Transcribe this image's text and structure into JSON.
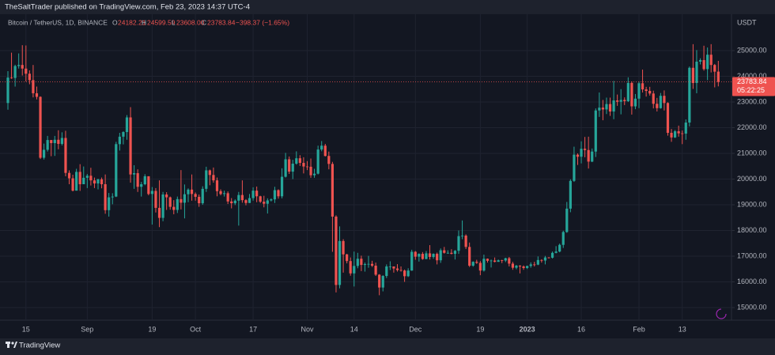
{
  "header": {
    "publisher": "TheSaltTrader published on TradingView.com, Feb 23, 2023 14:37 UTC-4"
  },
  "footer": {
    "brand": "TradingView"
  },
  "chart_data": {
    "type": "candlestick",
    "legend": {
      "symbol": "Bitcoin / TetherUS, 1D, BINANCE",
      "o_label": "O",
      "o": "24182.21",
      "h_label": "H",
      "h": "24599.59",
      "l_label": "L",
      "l": "23608.00",
      "c_label": "C",
      "c": "23783.84",
      "change": "−398.37 (−1.65%)"
    },
    "y_axis_title": "USDT",
    "countdown": "05:22:25",
    "up_color": "#26a69a",
    "down_color": "#ef5350",
    "grid": true,
    "ylim": [
      14508,
      26415
    ],
    "yticks": [
      {
        "value": 15000,
        "label": "15000.00"
      },
      {
        "value": 16000,
        "label": "16000.00"
      },
      {
        "value": 17000,
        "label": "17000.00"
      },
      {
        "value": 18000,
        "label": "18000.00"
      },
      {
        "value": 19000,
        "label": "19000.00"
      },
      {
        "value": 20000,
        "label": "20000.00"
      },
      {
        "value": 21000,
        "label": "21000.00"
      },
      {
        "value": 22000,
        "label": "22000.00"
      },
      {
        "value": 23000,
        "label": "23000.00"
      },
      {
        "value": 24000,
        "label": "24000.00"
      },
      {
        "value": 25000,
        "label": "25000.00"
      }
    ],
    "xticks": [
      {
        "value": "2022-08-15",
        "label": "15"
      },
      {
        "value": "2022-09-01",
        "label": "Sep"
      },
      {
        "value": "2022-09-19",
        "label": "19"
      },
      {
        "value": "2022-10-01",
        "label": "Oct"
      },
      {
        "value": "2022-10-17",
        "label": "17"
      },
      {
        "value": "2022-11-01",
        "label": "Nov"
      },
      {
        "value": "2022-11-14",
        "label": "14"
      },
      {
        "value": "2022-12-01",
        "label": "Dec"
      },
      {
        "value": "2022-12-19",
        "label": "19"
      },
      {
        "value": "2023-01-01",
        "label": "2023"
      },
      {
        "value": "2023-01-16",
        "label": "16"
      },
      {
        "value": "2023-02-01",
        "label": "Feb"
      },
      {
        "value": "2023-02-13",
        "label": "13"
      }
    ],
    "x": [
      "2022-08-10",
      "2022-08-11",
      "2022-08-12",
      "2022-08-13",
      "2022-08-14",
      "2022-08-15",
      "2022-08-16",
      "2022-08-17",
      "2022-08-18",
      "2022-08-19",
      "2022-08-20",
      "2022-08-21",
      "2022-08-22",
      "2022-08-23",
      "2022-08-24",
      "2022-08-25",
      "2022-08-26",
      "2022-08-27",
      "2022-08-28",
      "2022-08-29",
      "2022-08-30",
      "2022-08-31",
      "2022-09-01",
      "2022-09-02",
      "2022-09-03",
      "2022-09-04",
      "2022-09-05",
      "2022-09-06",
      "2022-09-07",
      "2022-09-08",
      "2022-09-09",
      "2022-09-10",
      "2022-09-11",
      "2022-09-12",
      "2022-09-13",
      "2022-09-14",
      "2022-09-15",
      "2022-09-16",
      "2022-09-17",
      "2022-09-18",
      "2022-09-19",
      "2022-09-20",
      "2022-09-21",
      "2022-09-22",
      "2022-09-23",
      "2022-09-24",
      "2022-09-25",
      "2022-09-26",
      "2022-09-27",
      "2022-09-28",
      "2022-09-29",
      "2022-09-30",
      "2022-10-01",
      "2022-10-02",
      "2022-10-03",
      "2022-10-04",
      "2022-10-05",
      "2022-10-06",
      "2022-10-07",
      "2022-10-08",
      "2022-10-09",
      "2022-10-10",
      "2022-10-11",
      "2022-10-12",
      "2022-10-13",
      "2022-10-14",
      "2022-10-15",
      "2022-10-16",
      "2022-10-17",
      "2022-10-18",
      "2022-10-19",
      "2022-10-20",
      "2022-10-21",
      "2022-10-22",
      "2022-10-23",
      "2022-10-24",
      "2022-10-25",
      "2022-10-26",
      "2022-10-27",
      "2022-10-28",
      "2022-10-29",
      "2022-10-30",
      "2022-10-31",
      "2022-11-01",
      "2022-11-02",
      "2022-11-03",
      "2022-11-04",
      "2022-11-05",
      "2022-11-06",
      "2022-11-07",
      "2022-11-08",
      "2022-11-09",
      "2022-11-10",
      "2022-11-11",
      "2022-11-12",
      "2022-11-13",
      "2022-11-14",
      "2022-11-15",
      "2022-11-16",
      "2022-11-17",
      "2022-11-18",
      "2022-11-19",
      "2022-11-20",
      "2022-11-21",
      "2022-11-22",
      "2022-11-23",
      "2022-11-24",
      "2022-11-25",
      "2022-11-26",
      "2022-11-27",
      "2022-11-28",
      "2022-11-29",
      "2022-11-30",
      "2022-12-01",
      "2022-12-02",
      "2022-12-03",
      "2022-12-04",
      "2022-12-05",
      "2022-12-06",
      "2022-12-07",
      "2022-12-08",
      "2022-12-09",
      "2022-12-10",
      "2022-12-11",
      "2022-12-12",
      "2022-12-13",
      "2022-12-14",
      "2022-12-15",
      "2022-12-16",
      "2022-12-17",
      "2022-12-18",
      "2022-12-19",
      "2022-12-20",
      "2022-12-21",
      "2022-12-22",
      "2022-12-23",
      "2022-12-24",
      "2022-12-25",
      "2022-12-26",
      "2022-12-27",
      "2022-12-28",
      "2022-12-29",
      "2022-12-30",
      "2022-12-31",
      "2023-01-01",
      "2023-01-02",
      "2023-01-03",
      "2023-01-04",
      "2023-01-05",
      "2023-01-06",
      "2023-01-07",
      "2023-01-08",
      "2023-01-09",
      "2023-01-10",
      "2023-01-11",
      "2023-01-12",
      "2023-01-13",
      "2023-01-14",
      "2023-01-15",
      "2023-01-16",
      "2023-01-17",
      "2023-01-18",
      "2023-01-19",
      "2023-01-20",
      "2023-01-21",
      "2023-01-22",
      "2023-01-23",
      "2023-01-24",
      "2023-01-25",
      "2023-01-26",
      "2023-01-27",
      "2023-01-28",
      "2023-01-29",
      "2023-01-30",
      "2023-01-31",
      "2023-02-01",
      "2023-02-02",
      "2023-02-03",
      "2023-02-04",
      "2023-02-05",
      "2023-02-06",
      "2023-02-07",
      "2023-02-08",
      "2023-02-09",
      "2023-02-10",
      "2023-02-11",
      "2023-02-12",
      "2023-02-13",
      "2023-02-14",
      "2023-02-15",
      "2023-02-16",
      "2023-02-17",
      "2023-02-18",
      "2023-02-19",
      "2023-02-20",
      "2023-02-21",
      "2023-02-22",
      "2023-02-23"
    ],
    "open": [
      22960,
      23950,
      23935,
      24400,
      24440,
      24300,
      24100,
      23850,
      23340,
      23200,
      20830,
      21140,
      21520,
      21400,
      21530,
      21370,
      21600,
      20240,
      20030,
      19550,
      20280,
      19800,
      20050,
      20130,
      19950,
      19830,
      19990,
      19800,
      18790,
      19290,
      19320,
      21360,
      21650,
      21830,
      22400,
      20180,
      20230,
      19700,
      19800,
      20110,
      19420,
      19540,
      18880,
      18490,
      19400,
      19290,
      18920,
      18800,
      19220,
      19080,
      19410,
      19590,
      19420,
      19310,
      19060,
      19620,
      20340,
      20160,
      19950,
      19530,
      19420,
      19450,
      19130,
      19060,
      19160,
      19380,
      19180,
      19070,
      19260,
      19550,
      19330,
      19120,
      19040,
      19170,
      19210,
      19570,
      19330,
      20090,
      20770,
      20290,
      20600,
      20810,
      20630,
      20490,
      20480,
      20150,
      20210,
      21150,
      21300,
      20900,
      20590,
      18540,
      15880,
      17590,
      17070,
      16810,
      16330,
      16620,
      16900,
      16660,
      16690,
      16700,
      16630,
      16280,
      15780,
      16230,
      16600,
      16600,
      16520,
      16460,
      16440,
      16220,
      16440,
      17170,
      16980,
      17090,
      16890,
      17110,
      16970,
      17090,
      16840,
      17230,
      17130,
      17130,
      17090,
      17210,
      17780,
      17800,
      17360,
      16630,
      16780,
      16740,
      16440,
      16900,
      16820,
      16830,
      16780,
      16840,
      16830,
      16920,
      16710,
      16550,
      16630,
      16600,
      16540,
      16620,
      16680,
      16670,
      16850,
      16830,
      16950,
      16940,
      17130,
      17180,
      17440,
      17940,
      18850,
      19930,
      20950,
      20870,
      21180,
      21130,
      20680,
      21070,
      22670,
      22780,
      22710,
      22920,
      22630,
      23060,
      23010,
      23080,
      23030,
      23740,
      22830,
      23130,
      23730,
      23490,
      23430,
      23330,
      22930,
      22760,
      23240,
      22960,
      21800,
      21620,
      21860,
      21780,
      21770,
      22200,
      24330,
      23740,
      24570,
      24630,
      24280,
      24840,
      24440,
      24182.21
    ],
    "high": [
      24200,
      24920,
      24450,
      24890,
      25210,
      25200,
      24230,
      24440,
      23600,
      23220,
      21380,
      21680,
      21520,
      21680,
      21900,
      21820,
      21880,
      20340,
      20170,
      20400,
      20580,
      20490,
      20200,
      20440,
      20060,
      20010,
      20060,
      20180,
      19460,
      19450,
      21450,
      21800,
      21860,
      22490,
      22800,
      20540,
      20380,
      19890,
      20190,
      20110,
      19690,
      19650,
      19950,
      19500,
      19490,
      19320,
      19180,
      19320,
      20350,
      19790,
      19640,
      20180,
      19480,
      19400,
      19720,
      20480,
      20370,
      20450,
      20060,
      19600,
      19550,
      19520,
      19260,
      19210,
      19500,
      19950,
      19220,
      19420,
      19680,
      19710,
      19350,
      19350,
      19250,
      19250,
      19700,
      19600,
      20420,
      21020,
      20880,
      20750,
      21080,
      20930,
      20850,
      20700,
      20800,
      20400,
      21300,
      21480,
      21370,
      21070,
      20670,
      18590,
      18160,
      17660,
      17090,
      16950,
      17180,
      17130,
      17020,
      16750,
      17010,
      16820,
      16750,
      16300,
      16260,
      16680,
      16800,
      16600,
      16690,
      16600,
      16480,
      16530,
      17250,
      17200,
      17110,
      17160,
      17200,
      17430,
      17110,
      17140,
      17300,
      17360,
      17230,
      17270,
      17240,
      18000,
      18390,
      17850,
      17530,
      16800,
      16860,
      16810,
      17060,
      16910,
      16870,
      16950,
      16870,
      16860,
      16940,
      16970,
      16780,
      16660,
      16650,
      16640,
      16630,
      16760,
      16780,
      16990,
      16880,
      17010,
      16960,
      17180,
      17390,
      17490,
      17990,
      19110,
      19990,
      21260,
      21000,
      21470,
      21640,
      21650,
      21190,
      22750,
      23370,
      23080,
      23170,
      23170,
      23820,
      23290,
      23500,
      23180,
      23960,
      23800,
      23310,
      23800,
      24260,
      23590,
      23590,
      23440,
      23160,
      23350,
      23450,
      22990,
      21950,
      21910,
      22080,
      21890,
      22320,
      24380,
      25250,
      25020,
      24700,
      25190,
      25120,
      25250,
      24480,
      24599.59
    ],
    "low": [
      22700,
      23900,
      23600,
      24300,
      24030,
      23800,
      23690,
      23180,
      23100,
      20780,
      20760,
      21070,
      20890,
      20900,
      21160,
      21310,
      20110,
      19800,
      19520,
      19550,
      19540,
      19800,
      19650,
      19750,
      19650,
      19600,
      19640,
      18650,
      18540,
      19020,
      19300,
      21110,
      21350,
      21530,
      19860,
      19620,
      19500,
      19320,
      19760,
      19370,
      18230,
      18700,
      18130,
      18360,
      18800,
      18810,
      18630,
      18680,
      18820,
      18470,
      19100,
      19160,
      19160,
      18920,
      19000,
      19500,
      19760,
      19860,
      19330,
      19370,
      19320,
      19030,
      18860,
      18990,
      18190,
      19080,
      18980,
      19070,
      19160,
      19100,
      19070,
      18900,
      18660,
      19130,
      19070,
      19240,
      19250,
      20060,
      20200,
      20000,
      20560,
      20510,
      20220,
      20350,
      20050,
      20050,
      20180,
      21080,
      20880,
      20380,
      17170,
      15590,
      15750,
      16360,
      16720,
      16240,
      15820,
      16530,
      16420,
      16400,
      16550,
      16580,
      16230,
      15480,
      15630,
      16150,
      16460,
      16360,
      16400,
      16400,
      16000,
      16190,
      16430,
      16860,
      16790,
      16860,
      16880,
      16870,
      16900,
      16680,
      16740,
      17100,
      17090,
      17070,
      16870,
      17090,
      17660,
      17280,
      16580,
      16590,
      16700,
      16260,
      16400,
      16750,
      16560,
      16760,
      16780,
      16730,
      16770,
      16600,
      16470,
      16490,
      16330,
      16470,
      16500,
      16550,
      16600,
      16650,
      16750,
      16680,
      16910,
      16910,
      17110,
      17150,
      17320,
      17910,
      18710,
      19890,
      20550,
      20610,
      20850,
      20410,
      20660,
      20860,
      22420,
      22290,
      22530,
      22460,
      22330,
      22850,
      22520,
      22880,
      23000,
      22510,
      22720,
      22760,
      23370,
      23210,
      23250,
      22750,
      22630,
      22740,
      22670,
      21690,
      21450,
      21600,
      21650,
      21360,
      21530,
      22050,
      23510,
      23340,
      24460,
      24220,
      23850,
      24150,
      23570,
      23608
    ],
    "close": [
      23950,
      23935,
      24400,
      24440,
      24300,
      24100,
      23850,
      23340,
      23200,
      20830,
      21140,
      21520,
      21400,
      21530,
      21370,
      21600,
      20240,
      20030,
      19550,
      20280,
      19800,
      20050,
      20130,
      19950,
      19830,
      19990,
      19800,
      18790,
      19290,
      19320,
      21360,
      21650,
      21830,
      22400,
      20180,
      20230,
      19700,
      19800,
      20110,
      19420,
      19540,
      18880,
      18490,
      19400,
      19290,
      18920,
      18800,
      19220,
      19080,
      19410,
      19590,
      19420,
      19310,
      19060,
      19620,
      20340,
      20160,
      19950,
      19530,
      19420,
      19450,
      19130,
      19060,
      19160,
      19380,
      19180,
      19070,
      19260,
      19550,
      19330,
      19120,
      19040,
      19170,
      19210,
      19570,
      19330,
      20090,
      20770,
      20290,
      20600,
      20810,
      20630,
      20490,
      20480,
      20150,
      20210,
      21150,
      21300,
      20900,
      20590,
      18540,
      15880,
      17590,
      17070,
      16810,
      16330,
      16620,
      16900,
      16660,
      16690,
      16700,
      16630,
      16280,
      15780,
      16230,
      16600,
      16600,
      16520,
      16460,
      16440,
      16220,
      16440,
      17170,
      16980,
      17090,
      16890,
      17110,
      16970,
      17090,
      16840,
      17230,
      17130,
      17130,
      17090,
      17210,
      17780,
      17800,
      17360,
      16630,
      16780,
      16740,
      16440,
      16900,
      16820,
      16830,
      16780,
      16840,
      16830,
      16920,
      16710,
      16550,
      16630,
      16600,
      16540,
      16620,
      16680,
      16670,
      16850,
      16830,
      16950,
      16940,
      17130,
      17180,
      17440,
      17940,
      18850,
      19930,
      20950,
      20870,
      21180,
      21130,
      20680,
      21070,
      22670,
      22780,
      22710,
      22920,
      22630,
      23060,
      23010,
      23080,
      23030,
      23740,
      22830,
      23130,
      23730,
      23490,
      23430,
      23330,
      22930,
      22760,
      23240,
      22960,
      21800,
      21620,
      21860,
      21780,
      21770,
      22200,
      24330,
      23740,
      24570,
      24630,
      24280,
      24840,
      24440,
      24180,
      23783.84
    ]
  }
}
